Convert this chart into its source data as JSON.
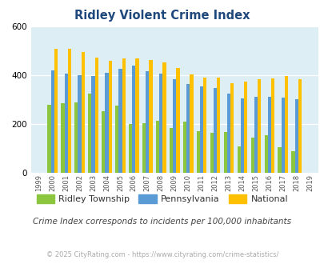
{
  "title": "Ridley Violent Crime Index",
  "years": [
    1999,
    2000,
    2001,
    2002,
    2003,
    2004,
    2005,
    2006,
    2007,
    2008,
    2009,
    2010,
    2011,
    2012,
    2013,
    2014,
    2015,
    2016,
    2017,
    2018,
    2019
  ],
  "ridley": [
    0,
    280,
    285,
    290,
    325,
    252,
    275,
    200,
    205,
    212,
    183,
    210,
    170,
    163,
    168,
    108,
    143,
    153,
    105,
    88,
    0
  ],
  "pennsylvania": [
    0,
    420,
    408,
    400,
    398,
    410,
    425,
    440,
    415,
    408,
    385,
    365,
    355,
    347,
    325,
    305,
    313,
    313,
    308,
    303,
    0
  ],
  "national": [
    0,
    507,
    507,
    494,
    473,
    460,
    469,
    470,
    463,
    452,
    430,
    404,
    390,
    390,
    368,
    374,
    383,
    386,
    396,
    383,
    0
  ],
  "color_ridley": "#8cc63f",
  "color_pennsylvania": "#5b9bd5",
  "color_national": "#ffc000",
  "bg_color": "#deeef5",
  "ylim": [
    0,
    600
  ],
  "yticks": [
    0,
    200,
    400,
    600
  ],
  "subtitle": "Crime Index corresponds to incidents per 100,000 inhabitants",
  "footer": "© 2025 CityRating.com - https://www.cityrating.com/crime-statistics/",
  "title_color": "#1f497d",
  "subtitle_color": "#444444",
  "footer_color": "#aaaaaa",
  "label_ridley": "Ridley Township",
  "label_pennsylvania": "Pennsylvania",
  "label_national": "National",
  "legend_colors": [
    "#8cc63f",
    "#5b9bd5",
    "#ffc000"
  ]
}
